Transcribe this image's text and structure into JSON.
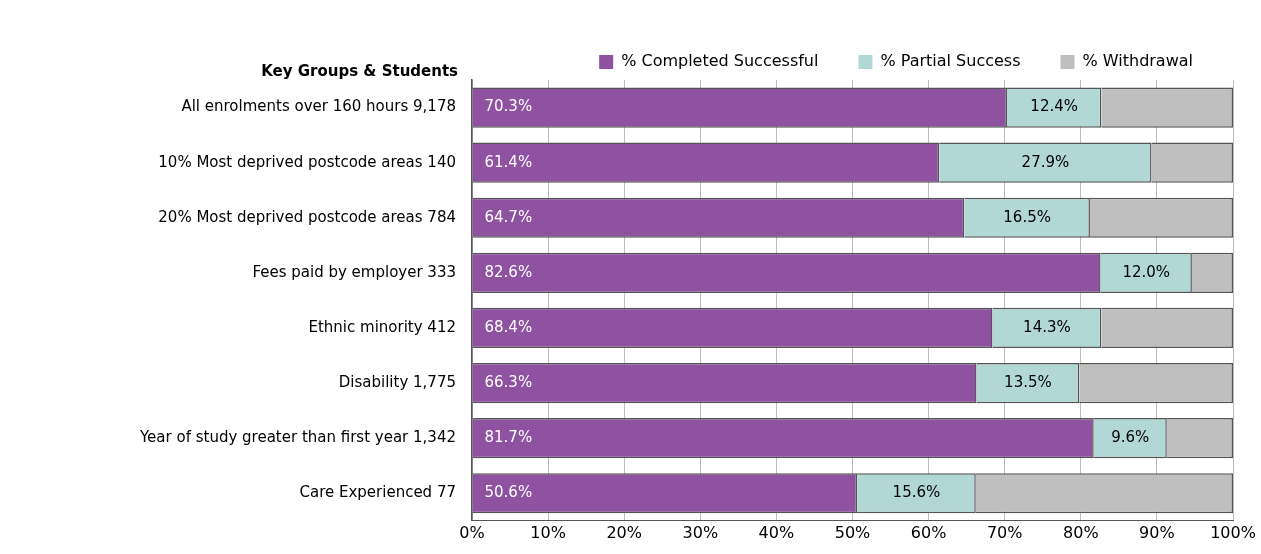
{
  "chart_data": {
    "type": "bar",
    "orientation": "horizontal",
    "stacked": true,
    "ylabel": "Key Groups & Students",
    "categories": [
      "All enrolments over 160 hours 9,178",
      "10% Most deprived postcode areas 140",
      "20% Most deprived postcode areas 784",
      "Fees paid by employer 333",
      "Ethnic minority 412",
      "Disability 1,775",
      "Year of study greater than first year 1,342",
      "Care Experienced 77"
    ],
    "series": [
      {
        "name": "% Completed Successful",
        "color": "#8e52a1",
        "values": [
          70.3,
          61.4,
          64.7,
          82.6,
          68.4,
          66.3,
          81.7,
          50.6
        ],
        "value_labels": [
          "70.3%",
          "61.4%",
          "64.7%",
          "82.6%",
          "68.4%",
          "66.3%",
          "81.7%",
          "50.6%"
        ]
      },
      {
        "name": "% Partial Success",
        "color": "#b2d8d6",
        "values": [
          12.4,
          27.9,
          16.5,
          12.0,
          14.3,
          13.5,
          9.6,
          15.6
        ],
        "value_labels": [
          "12.4%",
          "27.9%",
          "16.5%",
          "12.0%",
          "14.3%",
          "13.5%",
          "9.6%",
          "15.6%"
        ]
      },
      {
        "name": "% Withdrawal",
        "color": "#bfbfbf",
        "values": [
          17.3,
          10.7,
          18.8,
          5.4,
          17.3,
          20.2,
          8.7,
          33.8
        ]
      }
    ],
    "xlim": [
      0,
      100
    ],
    "xticks": [
      {
        "value": 0,
        "label": "0%"
      },
      {
        "value": 10,
        "label": "10%"
      },
      {
        "value": 20,
        "label": "20%"
      },
      {
        "value": 30,
        "label": "30%"
      },
      {
        "value": 40,
        "label": "40%"
      },
      {
        "value": 50,
        "label": "50%"
      },
      {
        "value": 60,
        "label": "60%"
      },
      {
        "value": 70,
        "label": "70%"
      },
      {
        "value": 80,
        "label": "80%"
      },
      {
        "value": 90,
        "label": "90%"
      },
      {
        "value": 100,
        "label": "100%"
      }
    ],
    "grid": "x",
    "legend": "top right"
  }
}
